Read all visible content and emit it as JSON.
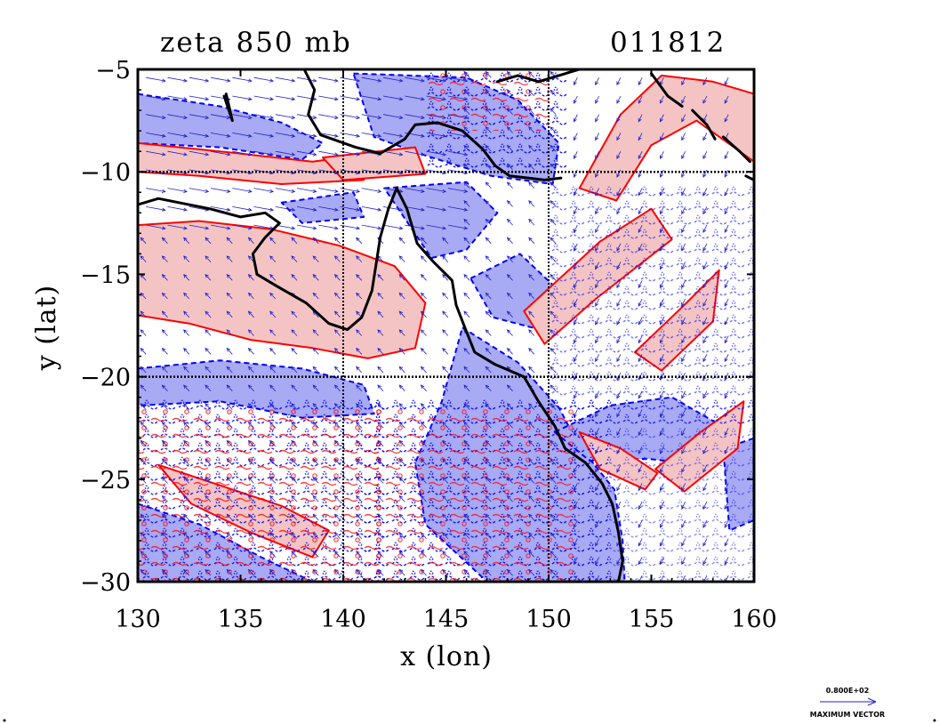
{
  "title_left": "zeta 850 mb",
  "title_right": "011812",
  "colors": {
    "positive_contour": "#ff0000",
    "positive_fill": "#f4c4c4",
    "negative_contour": "#0000ff",
    "negative_fill": "#a8aaf4",
    "coastline": "#000000",
    "vector": "#2222cc",
    "gridline": "#000000"
  },
  "legend": {
    "value": "0.800E+02",
    "label": "MAXIMUM VECTOR"
  },
  "chart_data": {
    "type": "heatmap",
    "title": "zeta 850 mb",
    "subtitle": "011812",
    "xlabel": "x (lon)",
    "ylabel": "y (lat)",
    "xlim": [
      130,
      160
    ],
    "ylim": [
      -30,
      -5
    ],
    "xticks": [
      130,
      135,
      140,
      145,
      150,
      155,
      160
    ],
    "yticks": [
      -5,
      -10,
      -15,
      -20,
      -25,
      -30
    ],
    "xtick_labels": [
      "130",
      "135",
      "140",
      "145",
      "150",
      "155",
      "160"
    ],
    "ytick_labels": [
      "−5",
      "−10",
      "−15",
      "−20",
      "−25",
      "−30"
    ],
    "gridlines_x": [
      140,
      150
    ],
    "gridlines_y": [
      -10,
      -20
    ],
    "grid": "dotted lines at 140, 150 E and 10, 20 S",
    "contours": {
      "positive": "solid red contours with pink fill",
      "negative": "dashed blue contours with light blue fill"
    },
    "overlay": "wind vectors",
    "coastline": [
      [
        [
          130.0,
          -11.6
        ],
        [
          131.0,
          -11.3
        ],
        [
          132.0,
          -11.5
        ],
        [
          133.5,
          -11.8
        ],
        [
          135.0,
          -12.2
        ],
        [
          136.2,
          -12.0
        ],
        [
          136.9,
          -12.5
        ],
        [
          136.2,
          -13.2
        ],
        [
          135.6,
          -14.0
        ],
        [
          135.8,
          -15.0
        ],
        [
          136.8,
          -15.6
        ],
        [
          138.2,
          -16.4
        ],
        [
          139.3,
          -17.4
        ],
        [
          140.2,
          -17.7
        ],
        [
          140.9,
          -17.1
        ],
        [
          141.4,
          -15.8
        ],
        [
          141.6,
          -14.5
        ],
        [
          141.8,
          -13.2
        ],
        [
          142.2,
          -11.8
        ],
        [
          142.6,
          -10.8
        ],
        [
          143.1,
          -11.8
        ],
        [
          143.6,
          -13.5
        ],
        [
          144.4,
          -14.4
        ],
        [
          145.3,
          -15.3
        ],
        [
          145.5,
          -16.5
        ],
        [
          146.0,
          -17.8
        ],
        [
          146.4,
          -18.8
        ],
        [
          147.4,
          -19.4
        ],
        [
          148.8,
          -20.0
        ],
        [
          149.5,
          -21.2
        ],
        [
          150.3,
          -22.4
        ],
        [
          150.8,
          -23.5
        ],
        [
          151.8,
          -24.2
        ],
        [
          152.6,
          -25.2
        ],
        [
          153.1,
          -26.2
        ],
        [
          153.4,
          -27.6
        ],
        [
          153.6,
          -29.0
        ],
        [
          153.4,
          -30.0
        ]
      ],
      [
        [
          138.1,
          -5.0
        ],
        [
          138.6,
          -6.0
        ],
        [
          138.3,
          -7.2
        ],
        [
          138.9,
          -8.2
        ],
        [
          140.6,
          -8.8
        ],
        [
          141.8,
          -9.1
        ],
        [
          143.0,
          -8.4
        ],
        [
          143.5,
          -7.7
        ],
        [
          144.6,
          -7.6
        ],
        [
          145.8,
          -8.0
        ],
        [
          146.8,
          -8.9
        ],
        [
          147.4,
          -9.7
        ],
        [
          148.1,
          -10.2
        ],
        [
          149.0,
          -10.3
        ],
        [
          149.8,
          -10.4
        ],
        [
          150.6,
          -10.3
        ]
      ],
      [
        [
          147.5,
          -5.6
        ],
        [
          148.5,
          -5.3
        ],
        [
          149.5,
          -5.6
        ],
        [
          150.5,
          -5.3
        ],
        [
          151.5,
          -5.0
        ]
      ],
      [
        [
          155.0,
          -5.2
        ],
        [
          155.8,
          -6.3
        ],
        [
          156.5,
          -6.8
        ]
      ],
      [
        [
          157.0,
          -7.0
        ],
        [
          157.7,
          -7.7
        ],
        [
          158.1,
          -8.4
        ]
      ],
      [
        [
          158.5,
          -8.3
        ],
        [
          159.3,
          -9.0
        ],
        [
          159.8,
          -9.5
        ]
      ],
      [
        [
          159.6,
          -10.2
        ],
        [
          160.0,
          -10.4
        ]
      ],
      [
        [
          134.2,
          -6.3
        ],
        [
          134.6,
          -7.5
        ],
        [
          134.3,
          -6.2
        ]
      ]
    ]
  }
}
